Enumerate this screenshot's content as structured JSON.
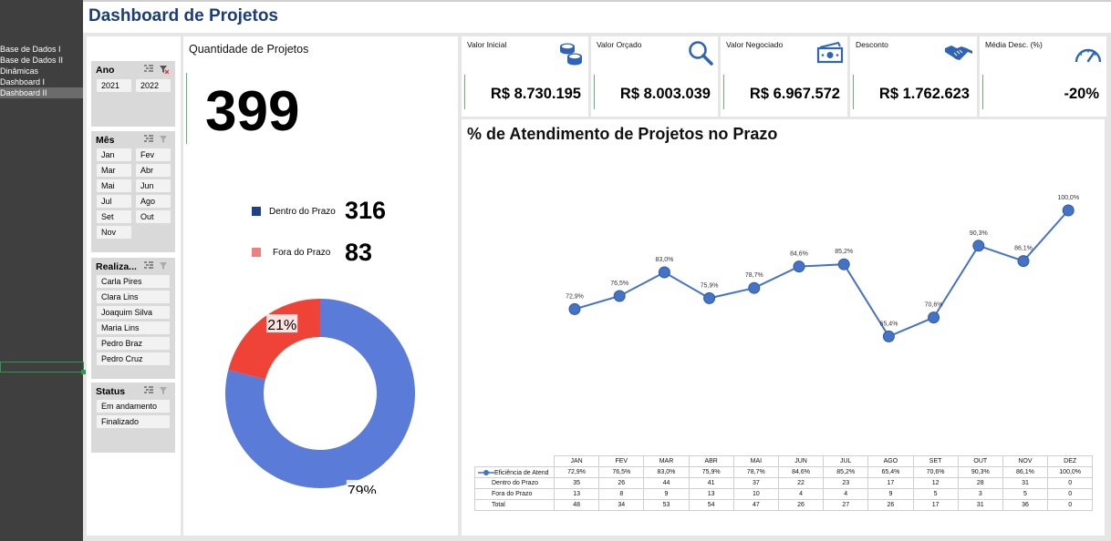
{
  "sidebar": {
    "sheets": [
      {
        "label": "Base de Dados I"
      },
      {
        "label": "Base de Dados II"
      },
      {
        "label": "Dinâmicas"
      },
      {
        "label": "Dashboard I"
      },
      {
        "label": "Dashboard II"
      }
    ]
  },
  "header": {
    "title": "Dashboard de Projetos"
  },
  "slicers": {
    "ano": {
      "title": "Ano",
      "items": [
        "2021",
        "2022"
      ]
    },
    "mes": {
      "title": "Mês",
      "items": [
        "Jan",
        "Fev",
        "Mar",
        "Abr",
        "Mai",
        "Jun",
        "Jul",
        "Ago",
        "Set",
        "Out",
        "Nov"
      ]
    },
    "realizador": {
      "title": "Realiza...",
      "items": [
        "Carla Pires",
        "Clara Lins",
        "Joaquim Silva",
        "Maria Lins",
        "Pedro Braz",
        "Pedro Cruz"
      ]
    },
    "status": {
      "title": "Status",
      "items": [
        "Em andamento",
        "Finalizado"
      ]
    }
  },
  "quantity": {
    "title": "Quantidade de Projetos",
    "total": "399",
    "legend": [
      {
        "label": "Dentro do Prazo",
        "value": "316",
        "color": "#1f3f8f"
      },
      {
        "label": "Fora do Prazo",
        "value": "83",
        "color": "#f08080"
      }
    ],
    "donut": {
      "slices": [
        {
          "label": "79%",
          "value": 79,
          "color": "#5b7bd9"
        },
        {
          "label": "21%",
          "value": 21,
          "color": "#ef4337"
        }
      ]
    }
  },
  "kpis": [
    {
      "label": "Valor Inicial",
      "value": "R$ 8.730.195",
      "icon": "coins-icon"
    },
    {
      "label": "Valor Orçado",
      "value": "R$ 8.003.039",
      "icon": "magnifier-icon"
    },
    {
      "label": "Valor Negociado",
      "value": "R$ 6.967.572",
      "icon": "money-bill-icon"
    },
    {
      "label": "Desconto",
      "value": "R$ 1.762.623",
      "icon": "handshake-icon"
    },
    {
      "label": "Média Desc. (%)",
      "value": "-20%",
      "icon": "gauge-icon"
    }
  ],
  "colors": {
    "accent": "#4472c4",
    "kpi_icon": "#2f63b8",
    "title": "#1a3c7a",
    "kpi_bar": "#5fb86b"
  },
  "chart_data": {
    "type": "line",
    "title": "% de Atendimento de Projetos no Prazo",
    "categories": [
      "JAN",
      "FEV",
      "MAR",
      "ABR",
      "MAI",
      "JUN",
      "JUL",
      "AGO",
      "SET",
      "OUT",
      "NOV",
      "DEZ"
    ],
    "series": [
      {
        "name": "Eficiência de Atend",
        "values": [
          72.9,
          76.5,
          83.0,
          75.9,
          78.7,
          84.6,
          85.2,
          65.4,
          70.6,
          90.3,
          86.1,
          100.0
        ],
        "labels": [
          "72,9%",
          "76,5%",
          "83,0%",
          "75,9%",
          "78,7%",
          "84,6%",
          "85,2%",
          "65,4%",
          "70,6%",
          "90,3%",
          "86,1%",
          "100,0%"
        ]
      }
    ],
    "table_rows": [
      {
        "label": "Dentro do Prazo",
        "values": [
          "35",
          "26",
          "44",
          "41",
          "37",
          "22",
          "23",
          "17",
          "12",
          "28",
          "31",
          "0"
        ]
      },
      {
        "label": "Fora do Prazo",
        "values": [
          "13",
          "8",
          "9",
          "13",
          "10",
          "4",
          "4",
          "9",
          "5",
          "3",
          "5",
          "0"
        ]
      },
      {
        "label": "Total",
        "values": [
          "48",
          "34",
          "53",
          "54",
          "47",
          "26",
          "27",
          "26",
          "17",
          "31",
          "36",
          "0"
        ]
      }
    ],
    "ylim": [
      40,
      110
    ]
  }
}
